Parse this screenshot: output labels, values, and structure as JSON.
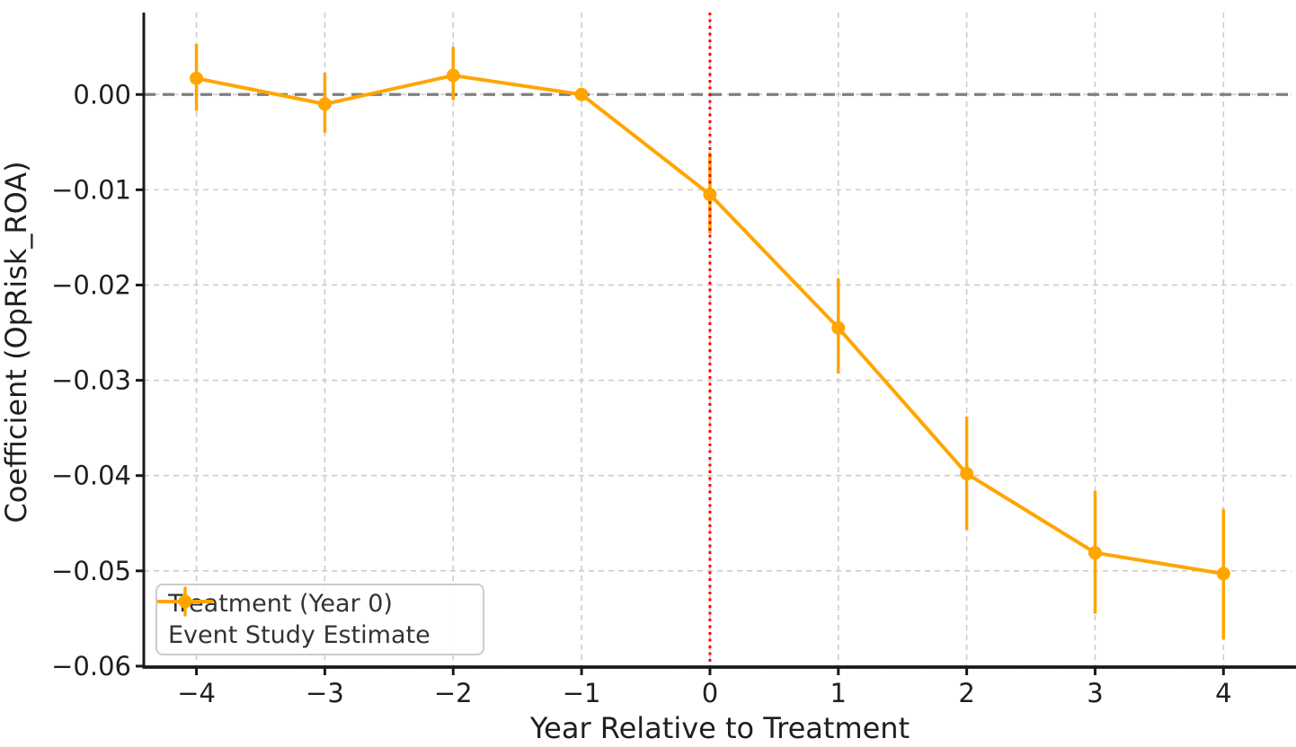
{
  "chart_data": {
    "type": "line",
    "title": "",
    "xlabel": "Year Relative to Treatment",
    "ylabel": "Coefficient (OpRisk_ROA)",
    "xlim": [
      -4.41,
      4.53
    ],
    "ylim": [
      -0.0601,
      0.0086
    ],
    "x_ticks": {
      "values": [
        -4,
        -3,
        -2,
        -1,
        0,
        1,
        2,
        3,
        4
      ],
      "labels": [
        "−4",
        "−3",
        "−2",
        "−1",
        "0",
        "1",
        "2",
        "3",
        "4"
      ]
    },
    "y_ticks": {
      "values": [
        0,
        -0.01,
        -0.02,
        -0.03,
        -0.04,
        -0.05,
        -0.06
      ],
      "labels": [
        "0.00",
        "−0.01",
        "−0.02",
        "−0.03",
        "−0.04",
        "−0.05",
        "−0.06"
      ]
    },
    "grid": {
      "show": true,
      "style": "dashed",
      "color": "#cccccc"
    },
    "zero_line": {
      "y": 0,
      "color": "#7f7f7f",
      "style": "dashed"
    },
    "treatment_line": {
      "x": 0,
      "color": "#ff0000",
      "style": "dotted"
    },
    "series": [
      {
        "name": "Event Study Estimate",
        "color": "#ffa500",
        "marker": "circle",
        "x": [
          -4,
          -3,
          -2,
          -1,
          0,
          1,
          2,
          3,
          4
        ],
        "y": [
          0.0017,
          -0.001,
          0.002,
          0.0,
          -0.0105,
          -0.0245,
          -0.0398,
          -0.0481,
          -0.0503
        ],
        "ci_low": [
          -0.0017,
          -0.004,
          -0.0006,
          0.0,
          -0.0146,
          -0.0293,
          -0.0457,
          -0.0545,
          -0.0572
        ],
        "ci_high": [
          0.0053,
          0.0023,
          0.005,
          0.0,
          -0.0061,
          -0.0193,
          -0.0338,
          -0.0416,
          -0.0435
        ],
        "reference_period_x": -1
      }
    ],
    "legend": {
      "position": "lower-left",
      "items": [
        {
          "label": "Treatment (Year 0)",
          "color": "#ff0000",
          "style": "dotted-line"
        },
        {
          "label": "Event Study Estimate",
          "color": "#ffa500",
          "style": "errorbar-marker"
        }
      ]
    },
    "colors": {
      "series": "#ffa500",
      "treatment_line": "#ff0000",
      "zero_line": "#7f7f7f",
      "grid": "#cccccc",
      "spine": "#1a1a1a",
      "text": "#1f1f1f"
    }
  }
}
